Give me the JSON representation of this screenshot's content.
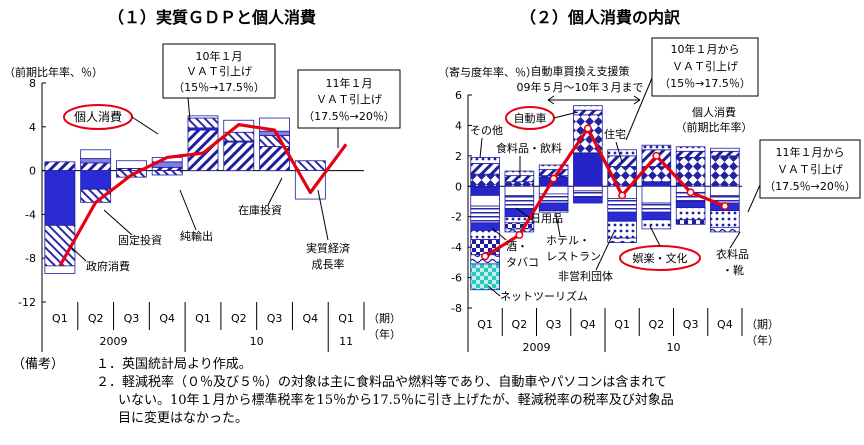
{
  "chart_data": [
    {
      "type": "bar",
      "title": "（１）実質ＧＤＰと個人消費",
      "ylabel": "（前期比年率、％）",
      "ylim": [
        -12,
        8
      ],
      "yticks": [
        "8",
        "4",
        "0",
        "-4",
        "-8",
        "-12"
      ],
      "categories": [
        "Q1",
        "Q2",
        "Q3",
        "Q4",
        "Q1",
        "Q2",
        "Q3",
        "Q4",
        "Q1"
      ],
      "year_labels": [
        "2009",
        "10",
        "11"
      ],
      "axis_unit_period": "（期）",
      "axis_unit_year": "（年）",
      "series": [
        {
          "name": "個人消費",
          "values": [
            0.8,
            0.7,
            0.2,
            0.3,
            3.7,
            2.6,
            2.2,
            0.0,
            0.0
          ]
        },
        {
          "name": "政府消費",
          "values": [
            -5.0,
            -1.7,
            0.0,
            0.0,
            0.2,
            0.1,
            0.0,
            0.0,
            0.0
          ]
        },
        {
          "name": "固定投資",
          "values": [
            -3.7,
            -1.2,
            -0.6,
            -0.4,
            0.9,
            0.8,
            1.0,
            0.9,
            0.0
          ]
        },
        {
          "name": "純輸出",
          "values": [
            0.0,
            0.4,
            0.0,
            0.5,
            0.0,
            0.0,
            0.4,
            0.0,
            0.0
          ]
        },
        {
          "name": "在庫投資",
          "values": [
            -0.7,
            0.8,
            0.7,
            0.4,
            0.2,
            1.1,
            1.2,
            -2.6,
            0.0
          ]
        },
        {
          "name": "実質経済成長率",
          "values": [
            -8.7,
            -2.9,
            -0.4,
            1.2,
            1.6,
            4.2,
            3.7,
            -2.0,
            2.4
          ]
        }
      ],
      "annotations": [
        {
          "text": "10年１月",
          "line2": "ＶＡＴ引上げ",
          "line3": "（15％→17.5％）"
        },
        {
          "text": "11年１月",
          "line2": "ＶＡＴ引上げ",
          "line3": "（17.5％→20％）"
        }
      ],
      "series_labels": {
        "consumption": "個人消費",
        "gov": "政府消費",
        "invest": "固定投資",
        "netexp": "純輸出",
        "inventory": "在庫投資",
        "growth_line1": "実質経済",
        "growth_line2": "成長率"
      }
    },
    {
      "type": "bar",
      "title": "（２）個人消費の内訳",
      "ylabel": "（寄与度年率、％）",
      "ylim": [
        -8,
        6
      ],
      "yticks": [
        "6",
        "4",
        "2",
        "0",
        "-2",
        "-4",
        "-6",
        "-8"
      ],
      "categories": [
        "Q1",
        "Q2",
        "Q3",
        "Q4",
        "Q1",
        "Q2",
        "Q3",
        "Q4"
      ],
      "year_labels": [
        "2009",
        "10"
      ],
      "axis_unit_period": "（期）",
      "axis_unit_year": "（年）",
      "series": [
        {
          "name": "自動車",
          "values": [
            -0.6,
            0.0,
            0.6,
            2.2,
            0.0,
            0.3,
            0.0,
            0.0
          ]
        },
        {
          "name": "その他",
          "values": [
            0.8,
            0.3,
            0.1,
            2.5,
            1.3,
            1.0,
            1.9,
            2.0
          ]
        },
        {
          "name": "食料品・飲料",
          "values": [
            0.7,
            0.4,
            0.4,
            0.3,
            0.7,
            1.1,
            0.4,
            0.3
          ]
        },
        {
          "name": "住宅",
          "values": [
            0.4,
            0.3,
            0.3,
            0.3,
            0.4,
            0.3,
            0.3,
            0.2
          ]
        },
        {
          "name": "日用品",
          "values": [
            -0.7,
            -0.6,
            -0.5,
            -0.3,
            -0.8,
            -1.1,
            -0.4,
            -0.6
          ]
        },
        {
          "name": "ホテル・レストラン",
          "values": [
            -1.1,
            -0.9,
            -0.6,
            -0.4,
            -0.9,
            -0.6,
            -0.6,
            -0.5
          ]
        },
        {
          "name": "非営利団体",
          "values": [
            -0.5,
            -0.5,
            -0.5,
            -0.4,
            -0.6,
            -0.5,
            -0.4,
            -0.5
          ]
        },
        {
          "name": "娯楽・文化",
          "values": [
            -0.6,
            -0.4,
            -0.1,
            0.0,
            -1.1,
            -0.6,
            -0.8,
            -1.1
          ]
        },
        {
          "name": "酒・タバコ",
          "values": [
            -1.0,
            -0.4,
            0.0,
            0.0,
            0.0,
            0.0,
            -0.3,
            0.0
          ]
        },
        {
          "name": "衣料品・靴",
          "values": [
            -0.6,
            -0.2,
            0.0,
            0.0,
            -0.3,
            0.0,
            0.0,
            -0.3
          ]
        },
        {
          "name": "ネットツーリズム",
          "values": [
            -1.7,
            0.0,
            0.0,
            0.0,
            0.0,
            0.0,
            0.0,
            0.0
          ]
        },
        {
          "name": "個人消費（前期比年率）",
          "values": [
            -4.6,
            -3.2,
            0.5,
            3.8,
            -0.6,
            2.0,
            -0.4,
            -1.3
          ]
        }
      ],
      "annotations": [
        {
          "text": "自動車買換え支援策",
          "line2": "09年５月～10年３月まで"
        },
        {
          "text": "10年１月から",
          "line2": "ＶＡＴ引上げ",
          "line3": "（15％→17.5％）"
        },
        {
          "text": "11年１月から",
          "line2": "ＶＡＴ引上げ",
          "line3": "（17.5％→20％）"
        }
      ],
      "series_labels": {
        "other": "その他",
        "car": "自動車",
        "food": "食料品・飲料",
        "housing": "住宅",
        "pc_line1": "個人消費",
        "pc_line2": "（前期比年率）",
        "daily": "日用品",
        "hotel_line1": "ホテル・",
        "hotel_line2": "レストラン",
        "liquor_line1": "酒・",
        "liquor_line2": "タバコ",
        "npo": "非営利団体",
        "recreation": "娯楽・文化",
        "clothing_line1": "衣料品",
        "clothing_line2": "・靴",
        "tourism": "ネットツーリズム"
      }
    }
  ],
  "notes": {
    "label": "（備考）",
    "line1": "１．英国統計局より作成。",
    "line2": "２．軽減税率（０％及び５％）の対象は主に食料品や燃料等であり、自動車やパソコンは含まれて",
    "line3": "いない。10年１月から標準税率を15％から17.5％に引き上げたが、軽減税率の税率及び対象品",
    "line4": "目に変更はなかった。"
  }
}
